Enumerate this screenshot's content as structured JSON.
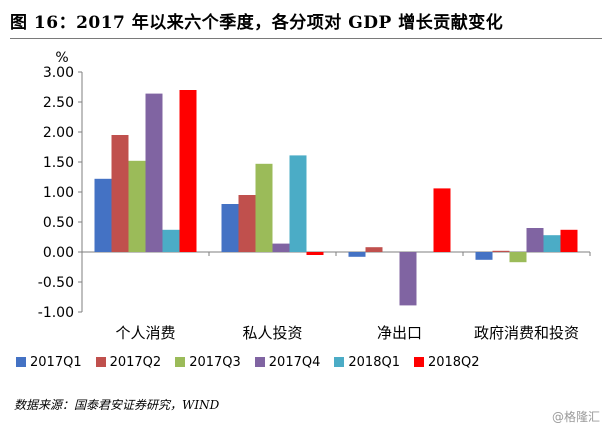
{
  "title": "图 16：2017 年以来六个季度，各分项对 GDP 增长贡献变化",
  "chart_data": {
    "type": "bar",
    "ylabel": "%",
    "ylim": [
      -1.0,
      3.0
    ],
    "yticks": [
      "-1.00",
      "-0.50",
      "0.00",
      "0.50",
      "1.00",
      "1.50",
      "2.00",
      "2.50",
      "3.00"
    ],
    "categories": [
      "个人消费",
      "私人投资",
      "净出口",
      "政府消费和投资"
    ],
    "series": [
      {
        "name": "2017Q1",
        "color": "#4472c4",
        "values": [
          1.22,
          0.8,
          -0.08,
          -0.13
        ]
      },
      {
        "name": "2017Q2",
        "color": "#c0504d",
        "values": [
          1.95,
          0.95,
          0.08,
          0.02
        ]
      },
      {
        "name": "2017Q3",
        "color": "#9bbb59",
        "values": [
          1.52,
          1.47,
          0.0,
          -0.17
        ]
      },
      {
        "name": "2017Q4",
        "color": "#8064a2",
        "values": [
          2.64,
          0.14,
          -0.89,
          0.4
        ]
      },
      {
        "name": "2018Q1",
        "color": "#4bacc6",
        "values": [
          0.37,
          1.61,
          0.0,
          0.28
        ]
      },
      {
        "name": "2018Q2",
        "color": "#ff0000",
        "values": [
          2.7,
          -0.05,
          1.06,
          0.37
        ]
      }
    ],
    "legend_position": "bottom",
    "grid": false
  },
  "source": "数据来源：国泰君安证券研究，WIND",
  "watermark": "@格隆汇"
}
